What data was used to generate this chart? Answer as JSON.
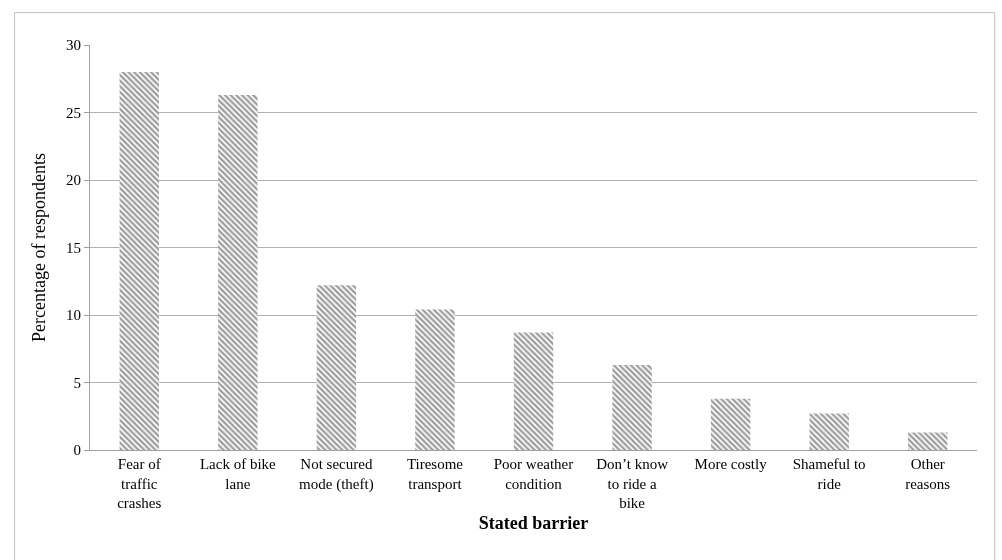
{
  "chart_data": {
    "type": "bar",
    "xlabel": "Stated barrier",
    "ylabel": "Percentage of respondents",
    "categories": [
      "Fear of traffic crashes",
      "Lack of bike lane",
      "Not secured mode (theft)",
      "Tiresome transport",
      "Poor weather condition",
      "Don’t know to ride a bike",
      "More costly",
      "Shameful to ride",
      "Other reasons"
    ],
    "values": [
      28.0,
      26.3,
      12.2,
      10.4,
      8.7,
      6.3,
      3.8,
      2.7,
      1.3
    ],
    "color": "#3a3a3a",
    "ylim": [
      0,
      30
    ],
    "yticks": [
      0,
      5,
      10,
      15,
      20,
      25,
      30
    ],
    "grid": "y",
    "legend": false
  }
}
